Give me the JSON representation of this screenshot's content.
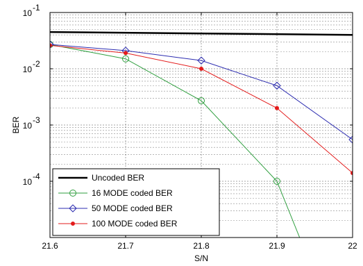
{
  "chart_data": {
    "type": "line",
    "xlabel": "S/N",
    "ylabel": "BER",
    "xlim": [
      21.6,
      22.0
    ],
    "ylim": [
      1e-05,
      0.1
    ],
    "yscale": "log",
    "grid": true,
    "legend_position": "bottom-left",
    "x_ticks": [
      "21.6",
      "21.7",
      "21.8",
      "21.9",
      "22"
    ],
    "y_ticks": [
      {
        "base": "10",
        "exp": "-1",
        "value": 0.1
      },
      {
        "base": "10",
        "exp": "-2",
        "value": 0.01
      },
      {
        "base": "10",
        "exp": "-3",
        "value": 0.001
      },
      {
        "base": "10",
        "exp": "-4",
        "value": 0.0001
      }
    ],
    "series": [
      {
        "name": "Uncoded BER",
        "color": "#000000",
        "marker": "none",
        "x": [
          21.6,
          22.0
        ],
        "y": [
          0.045,
          0.04
        ]
      },
      {
        "name": "16 MODE coded BER",
        "color": "#2e9e3e",
        "marker": "circle",
        "x": [
          21.6,
          21.7,
          21.8,
          21.9,
          21.93
        ],
        "y": [
          0.027,
          0.015,
          0.0027,
          0.0001,
          1e-05
        ]
      },
      {
        "name": "50 MODE coded BER",
        "color": "#2b2bb0",
        "marker": "diamond",
        "x": [
          21.6,
          21.7,
          21.8,
          21.9,
          22.0
        ],
        "y": [
          0.027,
          0.021,
          0.014,
          0.005,
          0.00055
        ]
      },
      {
        "name": "100 MODE coded BER",
        "color": "#e31b1b",
        "marker": "dot",
        "x": [
          21.6,
          21.7,
          21.8,
          21.9,
          22.0
        ],
        "y": [
          0.026,
          0.019,
          0.01,
          0.002,
          0.00014
        ]
      }
    ]
  }
}
